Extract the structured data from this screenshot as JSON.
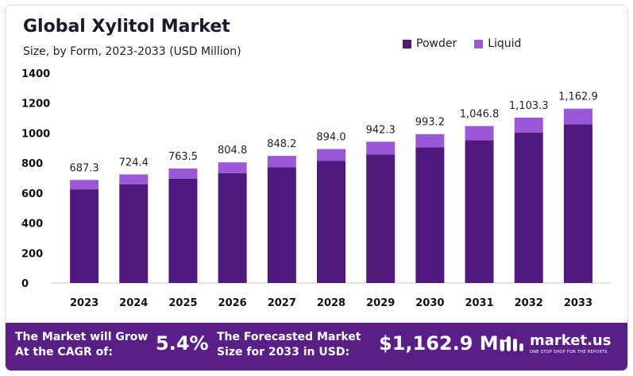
{
  "chart_data": {
    "type": "bar",
    "stacked": true,
    "title": "Global Xylitol Market",
    "subtitle": "Size, by Form, 2023-2033  (USD Million)",
    "categories": [
      "2023",
      "2024",
      "2025",
      "2026",
      "2027",
      "2028",
      "2029",
      "2030",
      "2031",
      "2032",
      "2033"
    ],
    "series": [
      {
        "name": "Powder",
        "color": "#4e1a7e",
        "values": [
          625,
          659,
          695,
          733,
          772,
          814,
          858,
          904,
          953,
          1004,
          1059
        ]
      },
      {
        "name": "Liquid",
        "color": "#9a57d6",
        "values": [
          62.3,
          65.4,
          68.5,
          71.8,
          76.2,
          80.0,
          84.3,
          89.2,
          93.8,
          99.3,
          103.9
        ]
      }
    ],
    "totals": [
      "687.3",
      "724.4",
      "763.5",
      "804.8",
      "848.2",
      "894.0",
      "942.3",
      "993.2",
      "1,046.8",
      "1,103.3",
      "1,162.9"
    ],
    "yticks": [
      0,
      200,
      400,
      600,
      800,
      1000,
      1200,
      1400
    ],
    "ylim": [
      0,
      1400
    ],
    "grid": false,
    "legend_position": "top-right"
  },
  "footer": {
    "cagr_label": "The Market will Grow At the CAGR of:",
    "cagr_value": "5.4%",
    "forecast_label": "The Forecasted Market Size for 2033 in USD:",
    "forecast_value": "$1,162.9 Mn",
    "brand_name": "market.us",
    "brand_tagline": "ONE STOP SHOP FOR THE REPORTS"
  },
  "colors": {
    "footer_bg": "#5a1f86",
    "powder": "#4e1a7e",
    "liquid": "#9a57d6"
  }
}
